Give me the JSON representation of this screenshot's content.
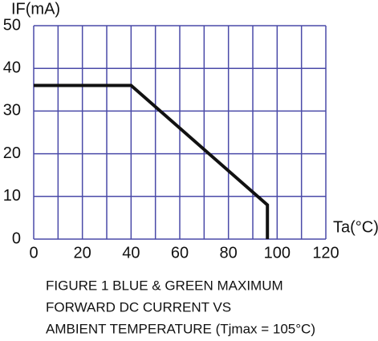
{
  "chart_data": {
    "type": "line",
    "ylabel": "IF(mA)",
    "xlabel": "Ta(°C)",
    "caption": [
      "FIGURE 1 BLUE & GREEN MAXIMUM",
      "FORWARD DC CURRENT VS",
      "AMBIENT TEMPERATURE (Tjmax = 105°C)"
    ],
    "x": [
      0,
      40,
      96,
      96
    ],
    "series": [
      {
        "color": "#111111",
        "values": [
          36,
          36,
          8,
          0
        ]
      }
    ],
    "xlim": [
      0,
      120
    ],
    "xticks": [
      0,
      20,
      40,
      60,
      80,
      100,
      120
    ],
    "xminorticks": [
      10,
      30,
      50,
      70,
      90,
      110
    ],
    "ylim": [
      0,
      50
    ],
    "yticks": [
      0,
      10,
      20,
      30,
      40,
      50
    ],
    "grid": true,
    "grid_color": "#4a4aa8"
  }
}
